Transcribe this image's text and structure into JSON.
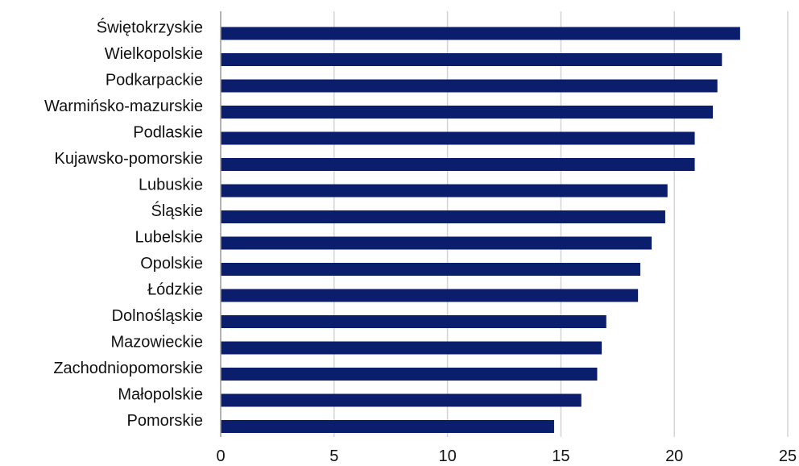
{
  "chart_data": {
    "type": "bar",
    "orientation": "horizontal",
    "categories": [
      "Świętokrzyskie",
      "Wielkopolskie",
      "Podkarpackie",
      "Warmińsko-mazurskie",
      "Podlaskie",
      "Kujawsko-pomorskie",
      "Lubuskie",
      "Śląskie",
      "Lubelskie",
      "Opolskie",
      "Łódzkie",
      "Dolnośląskie",
      "Mazowieckie",
      "Zachodniopomorskie",
      "Małopolskie",
      "Pomorskie"
    ],
    "values": [
      22.9,
      22.1,
      21.9,
      21.7,
      20.9,
      20.9,
      19.7,
      19.6,
      19.0,
      18.5,
      18.4,
      17.0,
      16.8,
      16.6,
      15.9,
      14.7
    ],
    "xlim": [
      0,
      25
    ],
    "xticks": [
      "0",
      "5",
      "10",
      "15",
      "20",
      "25"
    ],
    "grid": "vertical",
    "colors": {
      "bar": "#0b1e6e",
      "grid": "#d4d4d4",
      "axis": "#9a9a9a"
    }
  }
}
